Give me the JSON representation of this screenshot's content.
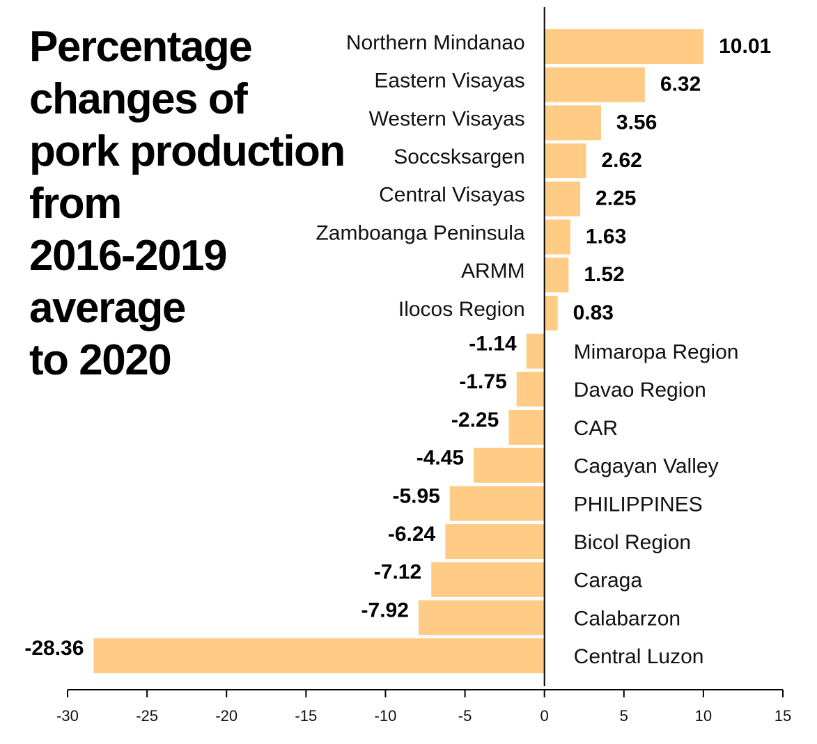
{
  "chart_data": {
    "type": "bar",
    "orientation": "horizontal",
    "title_lines": [
      "Percentage",
      "changes of",
      "pork production",
      "from",
      "2016-2019",
      "average",
      "to 2020"
    ],
    "categories": [
      "Northern Mindanao",
      "Eastern Visayas",
      "Western Visayas",
      "Soccsksargen",
      "Central Visayas",
      "Zamboanga Peninsula",
      "ARMM",
      "Ilocos Region",
      "Mimaropa Region",
      "Davao Region",
      "CAR",
      "Cagayan Valley",
      "PHILIPPINES",
      "Bicol Region",
      "Caraga",
      "Calabarzon",
      "Central Luzon"
    ],
    "values": [
      10.01,
      6.32,
      3.56,
      2.62,
      2.25,
      1.63,
      1.52,
      0.83,
      -1.14,
      -1.75,
      -2.25,
      -4.45,
      -5.95,
      -6.24,
      -7.12,
      -7.92,
      -28.36
    ],
    "value_labels": [
      "10.01",
      "6.32",
      "3.56",
      "2.62",
      "2.25",
      "1.63",
      "1.52",
      "0.83",
      "-1.14",
      "-1.75",
      "-2.25",
      "-4.45",
      "-5.95",
      "-6.24",
      "-7.12",
      "-7.92",
      "-28.36"
    ],
    "xlim": [
      -30,
      15
    ],
    "xticks": [
      -30,
      -25,
      -20,
      -15,
      -10,
      -5,
      0,
      5,
      10,
      15
    ],
    "grid": false,
    "legend": "none",
    "bar_color": "#FFCB85",
    "axis_color": "#000000"
  }
}
